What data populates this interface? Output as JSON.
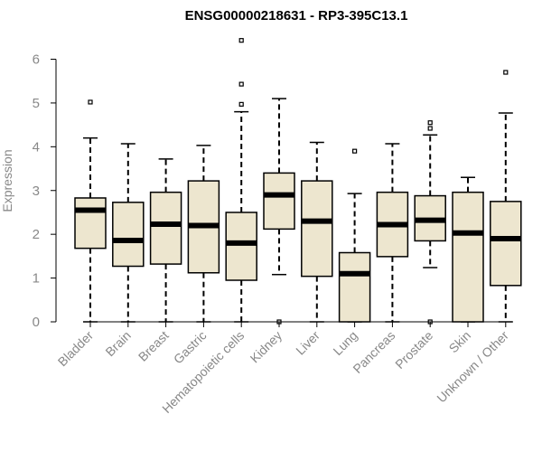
{
  "chart_data": {
    "type": "boxplot",
    "title": "ENSG00000218631 - RP3-395C13.1",
    "xlabel": "",
    "ylabel": "Expression",
    "ylim": [
      0,
      6
    ],
    "yticks": [
      0,
      1,
      2,
      3,
      4,
      5,
      6
    ],
    "categories": [
      "Bladder",
      "Brain",
      "Breast",
      "Gastric",
      "Hematopoietic cells",
      "Kidney",
      "Liver",
      "Lung",
      "Pancreas",
      "Prostate",
      "Skin",
      "Unknown / Other"
    ],
    "boxes": [
      {
        "name": "Bladder",
        "whisker_low": 0,
        "q1": 1.68,
        "median": 2.55,
        "q3": 2.83,
        "whisker_high": 4.2,
        "outliers": [
          5.02
        ]
      },
      {
        "name": "Brain",
        "whisker_low": 0,
        "q1": 1.27,
        "median": 1.86,
        "q3": 2.73,
        "whisker_high": 4.07,
        "outliers": []
      },
      {
        "name": "Breast",
        "whisker_low": 0,
        "q1": 1.32,
        "median": 2.23,
        "q3": 2.96,
        "whisker_high": 3.72,
        "outliers": []
      },
      {
        "name": "Gastric",
        "whisker_low": 0,
        "q1": 1.12,
        "median": 2.2,
        "q3": 3.22,
        "whisker_high": 4.03,
        "outliers": []
      },
      {
        "name": "Hematopoietic cells",
        "whisker_low": 0,
        "q1": 0.95,
        "median": 1.8,
        "q3": 2.5,
        "whisker_high": 4.8,
        "outliers": [
          4.97,
          5.43,
          6.43
        ]
      },
      {
        "name": "Kidney",
        "whisker_low": 1.08,
        "q1": 2.12,
        "median": 2.9,
        "q3": 3.4,
        "whisker_high": 5.1,
        "outliers": [
          0
        ]
      },
      {
        "name": "Liver",
        "whisker_low": 0,
        "q1": 1.04,
        "median": 2.3,
        "q3": 3.22,
        "whisker_high": 4.1,
        "outliers": []
      },
      {
        "name": "Lung",
        "whisker_low": 0,
        "q1": 0,
        "median": 1.1,
        "q3": 1.58,
        "whisker_high": 2.93,
        "outliers": [
          3.9
        ]
      },
      {
        "name": "Pancreas",
        "whisker_low": 0,
        "q1": 1.49,
        "median": 2.22,
        "q3": 2.96,
        "whisker_high": 4.07,
        "outliers": []
      },
      {
        "name": "Prostate",
        "whisker_low": 1.24,
        "q1": 1.85,
        "median": 2.32,
        "q3": 2.88,
        "whisker_high": 4.27,
        "outliers": [
          4.42,
          4.55,
          0
        ]
      },
      {
        "name": "Skin",
        "whisker_low": 0,
        "q1": 0,
        "median": 2.03,
        "q3": 2.96,
        "whisker_high": 3.3,
        "outliers": []
      },
      {
        "name": "Unknown / Other",
        "whisker_low": 0,
        "q1": 0.83,
        "median": 1.9,
        "q3": 2.75,
        "whisker_high": 4.77,
        "outliers": [
          5.7
        ]
      }
    ],
    "colors": {
      "box_fill": "#ede6cf",
      "stroke": "#000000",
      "label": "#888888"
    },
    "grid": false
  }
}
